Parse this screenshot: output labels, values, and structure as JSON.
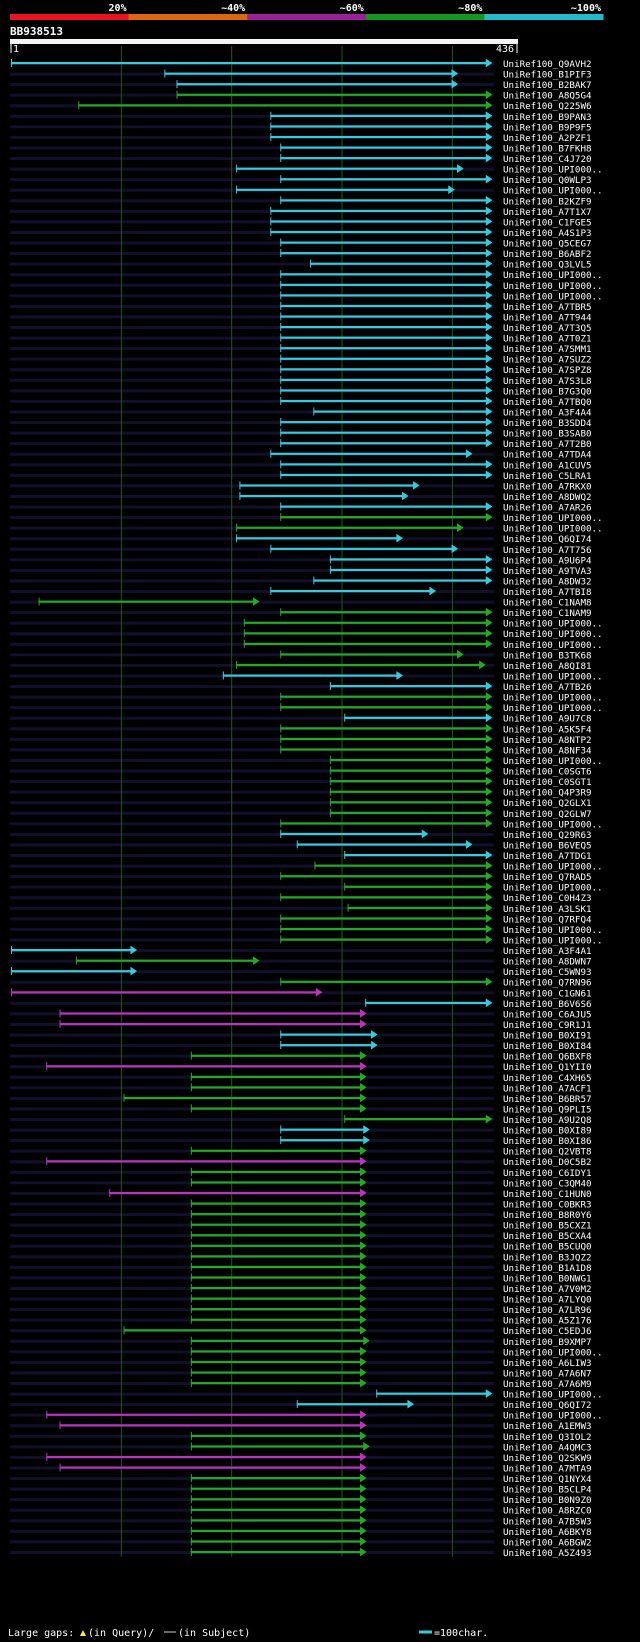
{
  "chart_data": {
    "type": "alignment-hit-map",
    "title": "BB938513",
    "query_length": 436,
    "ruler": {
      "start_label": "1",
      "end_label": "436"
    },
    "identity_scale": [
      {
        "label": "20%",
        "color": "#ee1122"
      },
      {
        "label": "~40%",
        "color": "#dd6611"
      },
      {
        "label": "~60%",
        "color": "#992299"
      },
      {
        "label": "~80%",
        "color": "#119922"
      },
      {
        "label": "~100%",
        "color": "#22bbcc"
      }
    ],
    "footer": {
      "gaps_label": "Large gaps:",
      "gap_query": "(in Query)/",
      "gap_subject": "(in Subject)",
      "scale_label": "=100char."
    },
    "hits": [
      {
        "name": "UniRef100_Q9AVH2",
        "s": 1,
        "e": 436,
        "c": "cyan"
      },
      {
        "name": "UniRef100_B1PIF3",
        "s": 140,
        "e": 405,
        "c": "cyan"
      },
      {
        "name": "UniRef100_B2BAK7",
        "s": 151,
        "e": 405,
        "c": "cyan"
      },
      {
        "name": "UniRef100_A8Q5G4",
        "s": 151,
        "e": 436,
        "c": "green"
      },
      {
        "name": "UniRef100_Q225W6",
        "s": 62,
        "e": 436,
        "c": "green"
      },
      {
        "name": "UniRef100_B9PAN3",
        "s": 236,
        "e": 436,
        "c": "cyan"
      },
      {
        "name": "UniRef100_B9P9F5",
        "s": 236,
        "e": 436,
        "c": "cyan"
      },
      {
        "name": "UniRef100_A2PZF1",
        "s": 236,
        "e": 436,
        "c": "cyan"
      },
      {
        "name": "UniRef100_B7FKH8",
        "s": 245,
        "e": 436,
        "c": "cyan"
      },
      {
        "name": "UniRef100_C4J720",
        "s": 245,
        "e": 436,
        "c": "cyan"
      },
      {
        "name": "UniRef100_UPI000..",
        "s": 205,
        "e": 410,
        "c": "cyan"
      },
      {
        "name": "UniRef100_Q0WLP3",
        "s": 245,
        "e": 436,
        "c": "cyan"
      },
      {
        "name": "UniRef100_UPI000..",
        "s": 205,
        "e": 402,
        "c": "cyan"
      },
      {
        "name": "UniRef100_B2KZF9",
        "s": 245,
        "e": 436,
        "c": "cyan"
      },
      {
        "name": "UniRef100_A7T1X7",
        "s": 236,
        "e": 436,
        "c": "cyan"
      },
      {
        "name": "UniRef100_C1FGE5",
        "s": 236,
        "e": 436,
        "c": "cyan"
      },
      {
        "name": "UniRef100_A4S1P3",
        "s": 236,
        "e": 436,
        "c": "cyan"
      },
      {
        "name": "UniRef100_Q5CEG7",
        "s": 245,
        "e": 436,
        "c": "cyan"
      },
      {
        "name": "UniRef100_B6ABF2",
        "s": 245,
        "e": 436,
        "c": "cyan"
      },
      {
        "name": "UniRef100_Q3LVL5",
        "s": 272,
        "e": 436,
        "c": "cyan"
      },
      {
        "name": "UniRef100_UPI000..",
        "s": 245,
        "e": 436,
        "c": "cyan"
      },
      {
        "name": "UniRef100_UPI000..",
        "s": 245,
        "e": 436,
        "c": "cyan"
      },
      {
        "name": "UniRef100_UPI000..",
        "s": 245,
        "e": 436,
        "c": "cyan"
      },
      {
        "name": "UniRef100_A7TBR5",
        "s": 245,
        "e": 436,
        "c": "cyan"
      },
      {
        "name": "UniRef100_A7T944",
        "s": 245,
        "e": 436,
        "c": "cyan"
      },
      {
        "name": "UniRef100_A7T3Q5",
        "s": 245,
        "e": 436,
        "c": "cyan"
      },
      {
        "name": "UniRef100_A7T0Z1",
        "s": 245,
        "e": 436,
        "c": "cyan"
      },
      {
        "name": "UniRef100_A7SMM1",
        "s": 245,
        "e": 436,
        "c": "cyan"
      },
      {
        "name": "UniRef100_A7SUZ2",
        "s": 245,
        "e": 436,
        "c": "cyan"
      },
      {
        "name": "UniRef100_A7SPZ8",
        "s": 245,
        "e": 436,
        "c": "cyan"
      },
      {
        "name": "UniRef100_A7S3L8",
        "s": 245,
        "e": 436,
        "c": "cyan"
      },
      {
        "name": "UniRef100_B7G3Q0",
        "s": 245,
        "e": 436,
        "c": "cyan"
      },
      {
        "name": "UniRef100_A7TBQ0",
        "s": 245,
        "e": 436,
        "c": "cyan"
      },
      {
        "name": "UniRef100_A3F4A4",
        "s": 275,
        "e": 436,
        "c": "cyan"
      },
      {
        "name": "UniRef100_B3SDD4",
        "s": 245,
        "e": 436,
        "c": "cyan"
      },
      {
        "name": "UniRef100_B3SAB0",
        "s": 245,
        "e": 436,
        "c": "cyan"
      },
      {
        "name": "UniRef100_A7T2B0",
        "s": 245,
        "e": 436,
        "c": "cyan"
      },
      {
        "name": "UniRef100_A7TDA4",
        "s": 236,
        "e": 418,
        "c": "cyan"
      },
      {
        "name": "UniRef100_A1CUV5",
        "s": 245,
        "e": 436,
        "c": "cyan"
      },
      {
        "name": "UniRef100_C5LRA1",
        "s": 245,
        "e": 436,
        "c": "cyan"
      },
      {
        "name": "UniRef100_A7RKX0",
        "s": 208,
        "e": 370,
        "c": "cyan"
      },
      {
        "name": "UniRef100_A8DWQ2",
        "s": 208,
        "e": 360,
        "c": "cyan"
      },
      {
        "name": "UniRef100_A7AR26",
        "s": 245,
        "e": 436,
        "c": "cyan"
      },
      {
        "name": "UniRef100_UPI000..",
        "s": 245,
        "e": 436,
        "c": "green"
      },
      {
        "name": "UniRef100_UPI000..",
        "s": 205,
        "e": 410,
        "c": "green"
      },
      {
        "name": "UniRef100_Q6QI74",
        "s": 205,
        "e": 355,
        "c": "cyan"
      },
      {
        "name": "UniRef100_A7T756",
        "s": 236,
        "e": 405,
        "c": "cyan"
      },
      {
        "name": "UniRef100_A9U6P4",
        "s": 290,
        "e": 436,
        "c": "cyan"
      },
      {
        "name": "UniRef100_A9TVA3",
        "s": 290,
        "e": 436,
        "c": "cyan"
      },
      {
        "name": "UniRef100_A8DW32",
        "s": 275,
        "e": 436,
        "c": "cyan"
      },
      {
        "name": "UniRef100_A7TBI8",
        "s": 236,
        "e": 385,
        "c": "cyan"
      },
      {
        "name": "UniRef100_C1NAM8",
        "s": 26,
        "e": 225,
        "c": "green"
      },
      {
        "name": "UniRef100_C1NAM9",
        "s": 245,
        "e": 436,
        "c": "green"
      },
      {
        "name": "UniRef100_UPI000..",
        "s": 212,
        "e": 436,
        "c": "green"
      },
      {
        "name": "UniRef100_UPI000..",
        "s": 212,
        "e": 436,
        "c": "green"
      },
      {
        "name": "UniRef100_UPI000..",
        "s": 212,
        "e": 436,
        "c": "green"
      },
      {
        "name": "UniRef100_B3TK68",
        "s": 245,
        "e": 410,
        "c": "green"
      },
      {
        "name": "UniRef100_A8QI81",
        "s": 205,
        "e": 430,
        "c": "green"
      },
      {
        "name": "UniRef100_UPI000..",
        "s": 193,
        "e": 355,
        "c": "cyan"
      },
      {
        "name": "UniRef100_A7TB26",
        "s": 290,
        "e": 436,
        "c": "cyan"
      },
      {
        "name": "UniRef100_UPI000..",
        "s": 245,
        "e": 436,
        "c": "green"
      },
      {
        "name": "UniRef100_UPI000..",
        "s": 245,
        "e": 436,
        "c": "green"
      },
      {
        "name": "UniRef100_A9U7C8",
        "s": 303,
        "e": 436,
        "c": "cyan"
      },
      {
        "name": "UniRef100_A5K5F4",
        "s": 245,
        "e": 436,
        "c": "green"
      },
      {
        "name": "UniRef100_A8NTP2",
        "s": 245,
        "e": 436,
        "c": "green"
      },
      {
        "name": "UniRef100_A8NF34",
        "s": 245,
        "e": 436,
        "c": "green"
      },
      {
        "name": "UniRef100_UPI000..",
        "s": 290,
        "e": 436,
        "c": "green"
      },
      {
        "name": "UniRef100_C0SGT6",
        "s": 290,
        "e": 436,
        "c": "green"
      },
      {
        "name": "UniRef100_C0SGT1",
        "s": 290,
        "e": 436,
        "c": "green"
      },
      {
        "name": "UniRef100_Q4P3R9",
        "s": 290,
        "e": 436,
        "c": "green"
      },
      {
        "name": "UniRef100_Q2GLX1",
        "s": 290,
        "e": 436,
        "c": "green"
      },
      {
        "name": "UniRef100_Q2GLW7",
        "s": 290,
        "e": 436,
        "c": "green"
      },
      {
        "name": "UniRef100_UPI000..",
        "s": 245,
        "e": 436,
        "c": "green"
      },
      {
        "name": "UniRef100_Q29R63",
        "s": 245,
        "e": 378,
        "c": "cyan"
      },
      {
        "name": "UniRef100_B6VEQ5",
        "s": 260,
        "e": 418,
        "c": "cyan"
      },
      {
        "name": "UniRef100_A7TDG1",
        "s": 303,
        "e": 436,
        "c": "cyan"
      },
      {
        "name": "UniRef100_UPI000..",
        "s": 276,
        "e": 436,
        "c": "green"
      },
      {
        "name": "UniRef100_Q7RAD5",
        "s": 245,
        "e": 436,
        "c": "green"
      },
      {
        "name": "UniRef100_UPI000..",
        "s": 303,
        "e": 436,
        "c": "green"
      },
      {
        "name": "UniRef100_C0H4Z3",
        "s": 245,
        "e": 436,
        "c": "green"
      },
      {
        "name": "UniRef100_A3LSK1",
        "s": 306,
        "e": 436,
        "c": "green"
      },
      {
        "name": "UniRef100_Q7RFQ4",
        "s": 245,
        "e": 436,
        "c": "green"
      },
      {
        "name": "UniRef100_UPI000..",
        "s": 245,
        "e": 436,
        "c": "green"
      },
      {
        "name": "UniRef100_UPI000..",
        "s": 245,
        "e": 436,
        "c": "green"
      },
      {
        "name": "UniRef100_A3F4A1",
        "s": 1,
        "e": 114,
        "c": "cyan"
      },
      {
        "name": "UniRef100_A8DWN7",
        "s": 60,
        "e": 225,
        "c": "green"
      },
      {
        "name": "UniRef100_C5WN93",
        "s": 1,
        "e": 114,
        "c": "cyan"
      },
      {
        "name": "UniRef100_Q7RN96",
        "s": 245,
        "e": 436,
        "c": "green"
      },
      {
        "name": "UniRef100_C1GN61",
        "s": 1,
        "e": 282,
        "c": "magenta"
      },
      {
        "name": "UniRef100_B6V6S6",
        "s": 322,
        "e": 436,
        "c": "cyan"
      },
      {
        "name": "UniRef100_C6AJU5",
        "s": 45,
        "e": 322,
        "c": "magenta"
      },
      {
        "name": "UniRef100_C9R1J1",
        "s": 45,
        "e": 322,
        "c": "magenta"
      },
      {
        "name": "UniRef100_B0XI91",
        "s": 245,
        "e": 332,
        "c": "cyan"
      },
      {
        "name": "UniRef100_B0XI84",
        "s": 245,
        "e": 332,
        "c": "cyan"
      },
      {
        "name": "UniRef100_Q6BXF8",
        "s": 164,
        "e": 322,
        "c": "green"
      },
      {
        "name": "UniRef100_Q1YII0",
        "s": 33,
        "e": 322,
        "c": "magenta"
      },
      {
        "name": "UniRef100_C4XH65",
        "s": 164,
        "e": 322,
        "c": "green"
      },
      {
        "name": "UniRef100_A7ACF1",
        "s": 164,
        "e": 322,
        "c": "green"
      },
      {
        "name": "UniRef100_B6BR57",
        "s": 103,
        "e": 322,
        "c": "green"
      },
      {
        "name": "UniRef100_Q9PLI5",
        "s": 164,
        "e": 322,
        "c": "green"
      },
      {
        "name": "UniRef100_A9U2Q8",
        "s": 303,
        "e": 436,
        "c": "green"
      },
      {
        "name": "UniRef100_B0XI89",
        "s": 245,
        "e": 325,
        "c": "cyan"
      },
      {
        "name": "UniRef100_B0XI86",
        "s": 245,
        "e": 325,
        "c": "cyan"
      },
      {
        "name": "UniRef100_Q2VBT8",
        "s": 164,
        "e": 322,
        "c": "green"
      },
      {
        "name": "UniRef100_D0C5B2",
        "s": 33,
        "e": 322,
        "c": "magenta"
      },
      {
        "name": "UniRef100_C6IDY1",
        "s": 164,
        "e": 322,
        "c": "green"
      },
      {
        "name": "UniRef100_C3QM40",
        "s": 164,
        "e": 322,
        "c": "green"
      },
      {
        "name": "UniRef100_C1HUN0",
        "s": 90,
        "e": 322,
        "c": "magenta"
      },
      {
        "name": "UniRef100_C0BKR3",
        "s": 164,
        "e": 322,
        "c": "green"
      },
      {
        "name": "UniRef100_B8R0Y6",
        "s": 164,
        "e": 322,
        "c": "green"
      },
      {
        "name": "UniRef100_B5CXZ1",
        "s": 164,
        "e": 322,
        "c": "green"
      },
      {
        "name": "UniRef100_B5CXA4",
        "s": 164,
        "e": 322,
        "c": "green"
      },
      {
        "name": "UniRef100_B5CUQ0",
        "s": 164,
        "e": 322,
        "c": "green"
      },
      {
        "name": "UniRef100_B3JQZ2",
        "s": 164,
        "e": 322,
        "c": "green"
      },
      {
        "name": "UniRef100_B1A1D8",
        "s": 164,
        "e": 322,
        "c": "green"
      },
      {
        "name": "UniRef100_B0NWG1",
        "s": 164,
        "e": 322,
        "c": "green"
      },
      {
        "name": "UniRef100_A7V0M2",
        "s": 164,
        "e": 322,
        "c": "green"
      },
      {
        "name": "UniRef100_A7LYQ0",
        "s": 164,
        "e": 322,
        "c": "green"
      },
      {
        "name": "UniRef100_A7LR96",
        "s": 164,
        "e": 322,
        "c": "green"
      },
      {
        "name": "UniRef100_A5Z176",
        "s": 164,
        "e": 322,
        "c": "green"
      },
      {
        "name": "UniRef100_C5EDJ6",
        "s": 103,
        "e": 322,
        "c": "green"
      },
      {
        "name": "UniRef100_B9XMP7",
        "s": 164,
        "e": 325,
        "c": "green"
      },
      {
        "name": "UniRef100_UPI000..",
        "s": 164,
        "e": 322,
        "c": "green"
      },
      {
        "name": "UniRef100_A6LIW3",
        "s": 164,
        "e": 322,
        "c": "green"
      },
      {
        "name": "UniRef100_A7A6N7",
        "s": 164,
        "e": 322,
        "c": "green"
      },
      {
        "name": "UniRef100_A7A6M9",
        "s": 164,
        "e": 322,
        "c": "green"
      },
      {
        "name": "UniRef100_UPI000..",
        "s": 332,
        "e": 436,
        "c": "cyan"
      },
      {
        "name": "UniRef100_Q6QI72",
        "s": 260,
        "e": 365,
        "c": "cyan"
      },
      {
        "name": "UniRef100_UPI000..",
        "s": 33,
        "e": 322,
        "c": "magenta"
      },
      {
        "name": "UniRef100_A1EMW3",
        "s": 45,
        "e": 322,
        "c": "magenta"
      },
      {
        "name": "UniRef100_Q3IOL2",
        "s": 164,
        "e": 322,
        "c": "green"
      },
      {
        "name": "UniRef100_A4QMC3",
        "s": 164,
        "e": 325,
        "c": "green"
      },
      {
        "name": "UniRef100_Q2SKW9",
        "s": 33,
        "e": 322,
        "c": "magenta"
      },
      {
        "name": "UniRef100_A7MTA9",
        "s": 45,
        "e": 322,
        "c": "magenta"
      },
      {
        "name": "UniRef100_Q1NYX4",
        "s": 164,
        "e": 322,
        "c": "green"
      },
      {
        "name": "UniRef100_B5CLP4",
        "s": 164,
        "e": 322,
        "c": "green"
      },
      {
        "name": "UniRef100_B0N9Z0",
        "s": 164,
        "e": 322,
        "c": "green"
      },
      {
        "name": "UniRef100_A8RZC0",
        "s": 164,
        "e": 322,
        "c": "green"
      },
      {
        "name": "UniRef100_A7B5W3",
        "s": 164,
        "e": 322,
        "c": "green"
      },
      {
        "name": "UniRef100_A6BKY8",
        "s": 164,
        "e": 322,
        "c": "green"
      },
      {
        "name": "UniRef100_A6BGW2",
        "s": 164,
        "e": 322,
        "c": "green"
      },
      {
        "name": "UniRef100_A5Z493",
        "s": 164,
        "e": 322,
        "c": "green"
      }
    ]
  },
  "colors": {
    "cyan": "#33ccdd",
    "green": "#22aa22",
    "magenta": "#bb33bb",
    "stripe": "#10102c",
    "grid": "#1e5a1e",
    "marker": "#ffee33"
  }
}
